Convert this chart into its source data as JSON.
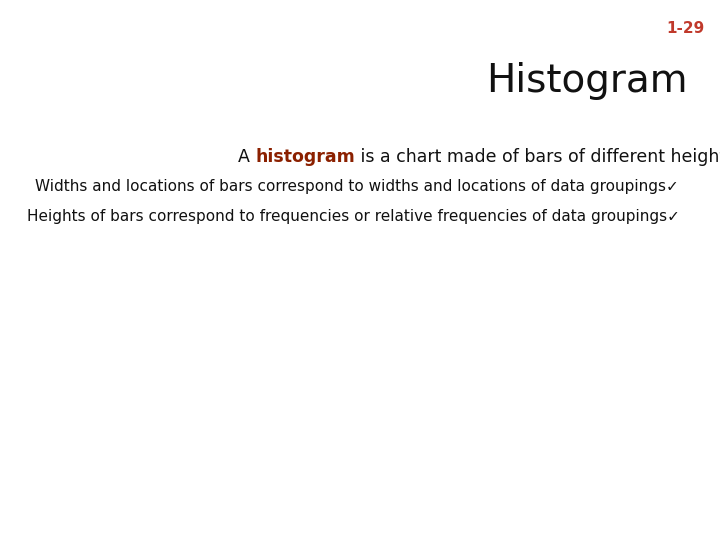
{
  "slide_number": "1-29",
  "slide_number_color": "#C0392B",
  "title": "Histogram",
  "title_color": "#111111",
  "title_fontsize": 28,
  "background_color": "#FFFFFF",
  "main_line_prefix": "A ",
  "main_line_keyword": "histogram",
  "main_line_suffix": " is a chart made of bars of different heights.",
  "main_line_bullet": "•",
  "keyword_color": "#8B2000",
  "main_line_color": "#111111",
  "main_line_fontsize": 12.5,
  "bullet_color": "#555555",
  "sub_line1": "Widths and locations of bars correspond to widths and locations of data groupings✓",
  "sub_line2": "Heights of bars correspond to frequencies or relative frequencies of data groupings✓",
  "sub_color": "#111111",
  "sub_fontsize": 11.0
}
